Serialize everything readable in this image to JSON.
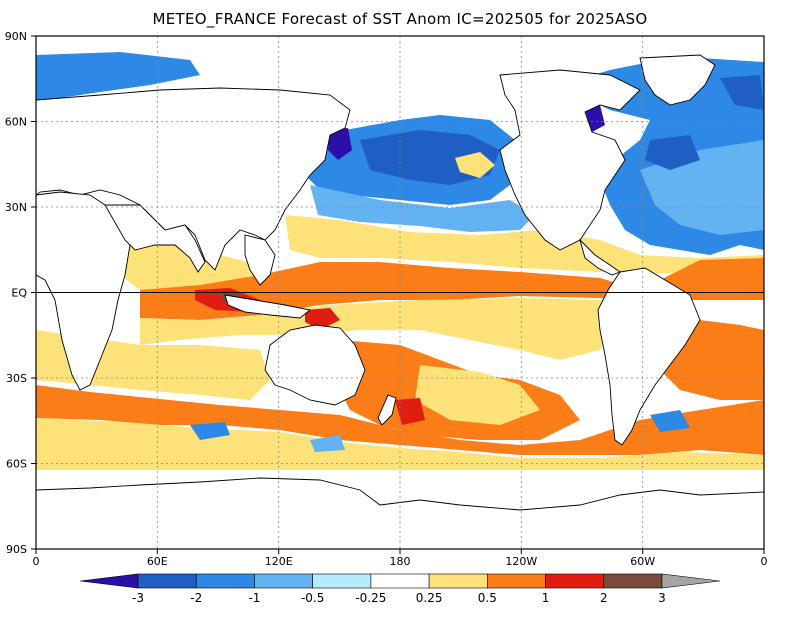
{
  "title": "METEO_FRANCE Forecast of SST Anom IC=202505 for 2025ASO",
  "y_axis": [
    "90N",
    "60N",
    "30N",
    "EQ",
    "30S",
    "60S",
    "90S"
  ],
  "x_axis": [
    "0",
    "60E",
    "120E",
    "180",
    "120W",
    "60W",
    "0"
  ],
  "colorbar": {
    "labels": [
      "-3",
      "-2",
      "-1",
      "-0.5",
      "-0.25",
      "0.25",
      "0.5",
      "1",
      "2",
      "3"
    ],
    "colors": [
      "#2b0fa8",
      "#1f5fc4",
      "#2e88e6",
      "#63b2f2",
      "#b4ecfa",
      "#ffffff",
      "#fde27a",
      "#fb7d18",
      "#e01d10",
      "#7a4a3c",
      "#a5a5a5"
    ]
  }
}
